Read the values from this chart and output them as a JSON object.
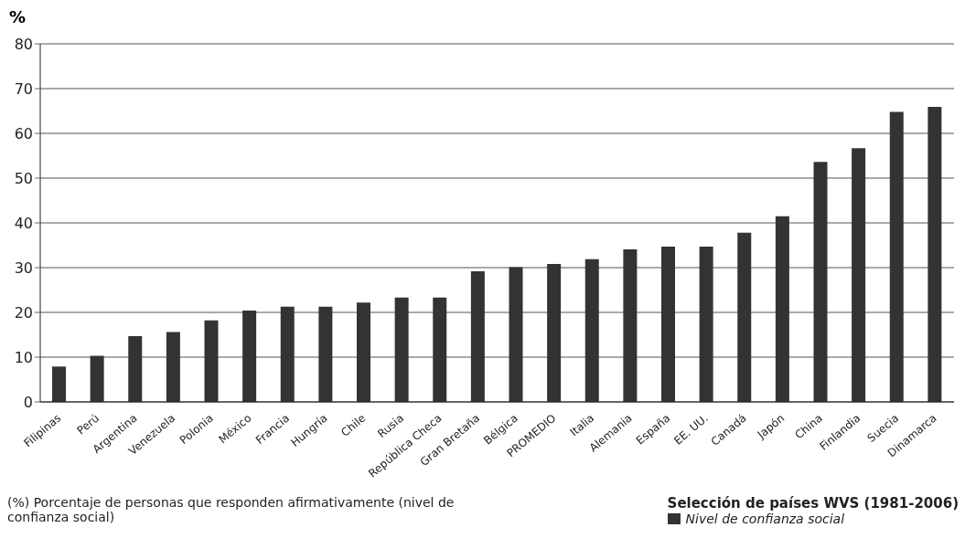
{
  "chart_data": {
    "type": "bar",
    "ylabel": "%",
    "legend_title": "Selección de países WVS (1981-2006)",
    "legend": "bottom right",
    "grid": "y",
    "categories": [
      "Filipinas",
      "Perú",
      "Argentina",
      "Venezuela",
      "Polonia",
      "México",
      "Francia",
      "Hungría",
      "Chile",
      "Rusia",
      "República Checa",
      "Gran Bretaña",
      "Bélgica",
      "PROMEDIO",
      "Italia",
      "Alemania",
      "España",
      "EE. UU.",
      "Canadá",
      "Japón",
      "China",
      "Finlandia",
      "Suecia",
      "Dinamarca"
    ],
    "series": [
      {
        "name": "Nivel de confianza social",
        "color": "#333333",
        "values": [
          7.9,
          10.3,
          14.7,
          15.6,
          18.2,
          20.4,
          21.3,
          21.3,
          22.2,
          23.3,
          23.3,
          29.2,
          30.1,
          30.8,
          31.9,
          34.1,
          34.7,
          34.7,
          37.8,
          41.5,
          53.6,
          56.7,
          64.8,
          65.9
        ]
      }
    ],
    "ylim": [
      0,
      80
    ],
    "yticks": [
      0,
      10,
      20,
      30,
      40,
      50,
      60,
      70,
      80
    ],
    "annotations": [
      "(%) Porcentaje de personas que responden afirmativamente (nivel de confianza social)"
    ]
  }
}
